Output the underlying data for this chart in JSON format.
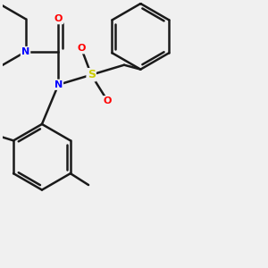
{
  "bg_color": "#f0f0f0",
  "bond_color": "#1a1a1a",
  "N_color": "#0000ff",
  "O_color": "#ff0000",
  "S_color": "#cccc00",
  "bond_width": 1.8,
  "figsize": [
    3.0,
    3.0
  ],
  "dpi": 100,
  "xlim": [
    -2.5,
    5.5
  ],
  "ylim": [
    -4.5,
    3.5
  ]
}
